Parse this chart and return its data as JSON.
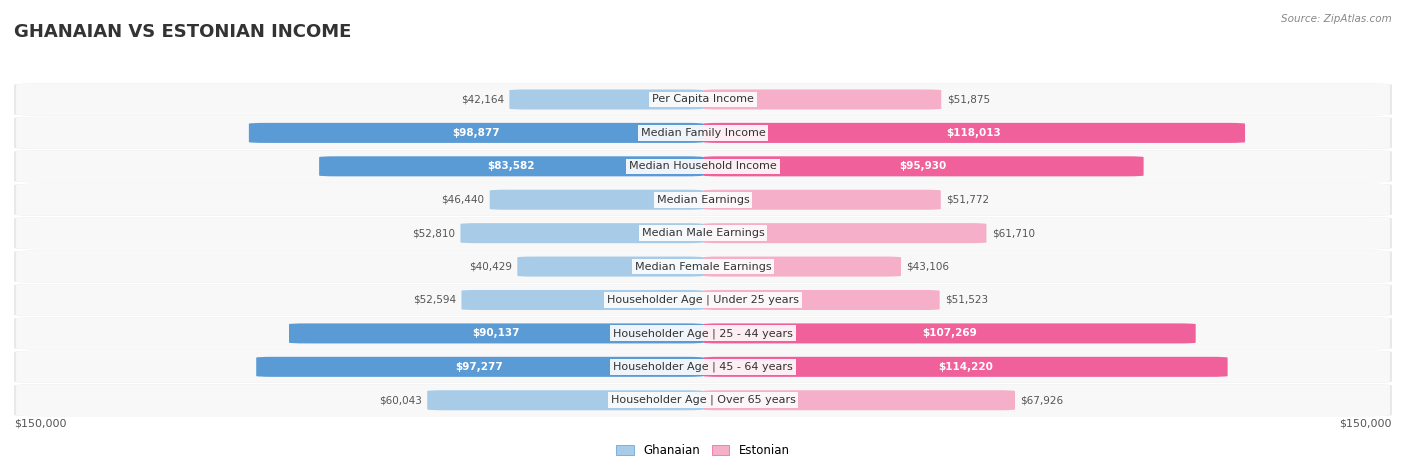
{
  "title": "GHANAIAN VS ESTONIAN INCOME",
  "source": "Source: ZipAtlas.com",
  "categories": [
    "Per Capita Income",
    "Median Family Income",
    "Median Household Income",
    "Median Earnings",
    "Median Male Earnings",
    "Median Female Earnings",
    "Householder Age | Under 25 years",
    "Householder Age | 25 - 44 years",
    "Householder Age | 45 - 64 years",
    "Householder Age | Over 65 years"
  ],
  "ghanaian_values": [
    42164,
    98877,
    83582,
    46440,
    52810,
    40429,
    52594,
    90137,
    97277,
    60043
  ],
  "estonian_values": [
    51875,
    118013,
    95930,
    51772,
    61710,
    43106,
    51523,
    107269,
    114220,
    67926
  ],
  "max_value": 150000,
  "ghanaian_color_light": "#a8cce8",
  "ghanaian_color_dark": "#5b9bd5",
  "estonian_color_light": "#f5afc8",
  "estonian_color_dark": "#f0609a",
  "ghanaian_label_threshold": 80000,
  "estonian_label_threshold": 80000,
  "row_bg_color": "#e8e8e8",
  "row_inner_color": "#f8f8f8",
  "title_fontsize": 13,
  "cat_fontsize": 8,
  "value_fontsize": 7.5,
  "legend_fontsize": 8.5,
  "axis_label_fontsize": 8
}
